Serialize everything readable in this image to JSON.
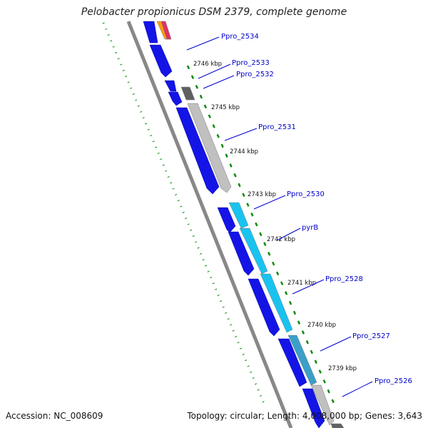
{
  "title": "Pelobacter propionicus DSM 2379, complete genome",
  "footer": {
    "accession": "Accession: NC_008609",
    "summary": "Topology: circular; Length: 4,008,000 bp; Genes: 3,643"
  },
  "colors": {
    "forward_gene": "#1414e6",
    "cds_light": "#c0c0c0",
    "cds_dark": "#606060",
    "cyan": "#19c3f0",
    "teal": "#3aa0c8",
    "backbone": "#888888",
    "ticks": "#0a8a0a",
    "label": "#0000cc"
  },
  "kbp_ticks": [
    {
      "label": "2746 kbp"
    },
    {
      "label": "2745 kbp"
    },
    {
      "label": "2744 kbp"
    },
    {
      "label": "2743 kbp"
    },
    {
      "label": "2742 kbp"
    },
    {
      "label": "2741 kbp"
    },
    {
      "label": "2740 kbp"
    },
    {
      "label": "2739 kbp"
    }
  ],
  "gene_labels": [
    {
      "name": "Ppro_2534"
    },
    {
      "name": "Ppro_2533"
    },
    {
      "name": "Ppro_2532"
    },
    {
      "name": "Ppro_2531"
    },
    {
      "name": "Ppro_2530"
    },
    {
      "name": "pyrB"
    },
    {
      "name": "Ppro_2528"
    },
    {
      "name": "Ppro_2527"
    },
    {
      "name": "Ppro_2526"
    }
  ]
}
